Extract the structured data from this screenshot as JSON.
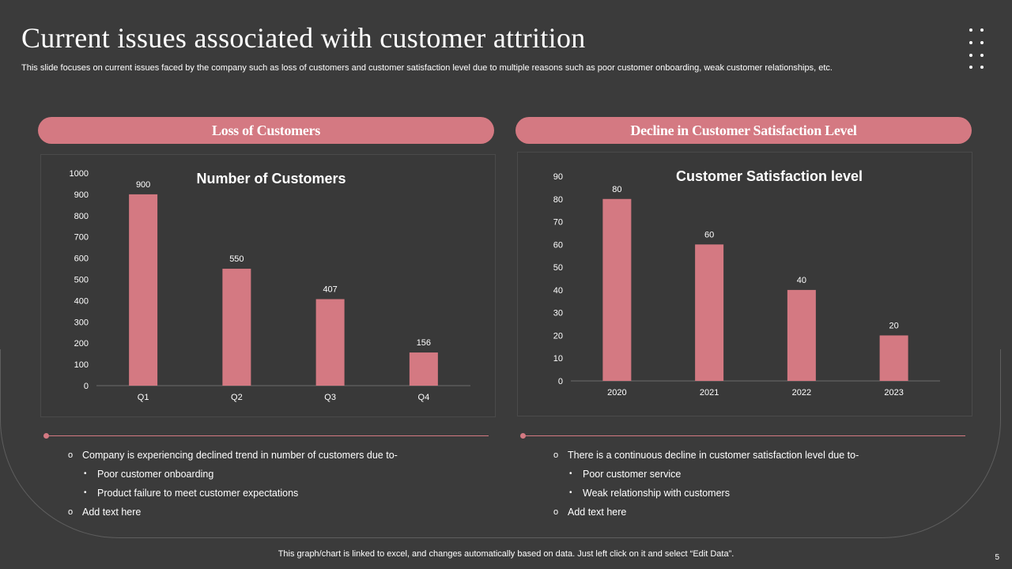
{
  "header": {
    "title": "Current issues associated with customer attrition",
    "subtitle": "This slide focuses on current issues faced by the company such as loss of customers and customer satisfaction level due to multiple reasons such as poor customer onboarding, weak customer relationships, etc."
  },
  "left_panel": {
    "heading": "Loss of Customers",
    "bullets": [
      {
        "marker": "o",
        "text": "Company is experiencing declined trend in number of customers due to-"
      },
      {
        "marker": "•",
        "text": "Poor customer onboarding"
      },
      {
        "marker": "•",
        "text": "Product failure to meet customer expectations"
      },
      {
        "marker": "o",
        "text": "Add text here"
      }
    ]
  },
  "right_panel": {
    "heading": "Decline in Customer Satisfaction Level",
    "bullets": [
      {
        "marker": "o",
        "text": "There is a continuous decline in customer satisfaction level due to-"
      },
      {
        "marker": "•",
        "text": "Poor customer service"
      },
      {
        "marker": "•",
        "text": "Weak relationship with customers"
      },
      {
        "marker": "o",
        "text": "Add text here"
      }
    ]
  },
  "chart_data": [
    {
      "type": "bar",
      "title": "Number of Customers",
      "categories": [
        "Q1",
        "Q2",
        "Q3",
        "Q4"
      ],
      "values": [
        900,
        550,
        407,
        156
      ],
      "yticks": [
        0,
        100,
        200,
        300,
        400,
        500,
        600,
        700,
        800,
        900,
        1000
      ],
      "ylim": [
        0,
        1000
      ],
      "xlabel": "",
      "ylabel": "",
      "grid": false,
      "color": "#d47982"
    },
    {
      "type": "bar",
      "title": "Customer Satisfaction level",
      "categories": [
        "2020",
        "2021",
        "2022",
        "2023"
      ],
      "values": [
        80,
        60,
        40,
        20
      ],
      "yticks": [
        0,
        10,
        20,
        30,
        40,
        50,
        60,
        70,
        80,
        90
      ],
      "ylim": [
        0,
        90
      ],
      "xlabel": "",
      "ylabel": "",
      "grid": false,
      "color": "#d47982"
    }
  ],
  "footer": {
    "note": "This graph/chart is linked to excel, and changes automatically based on data. Just left click on it and select “Edit Data”.",
    "page_number": "5"
  },
  "colors": {
    "accent": "#d47982",
    "background": "#3b3b3b"
  }
}
